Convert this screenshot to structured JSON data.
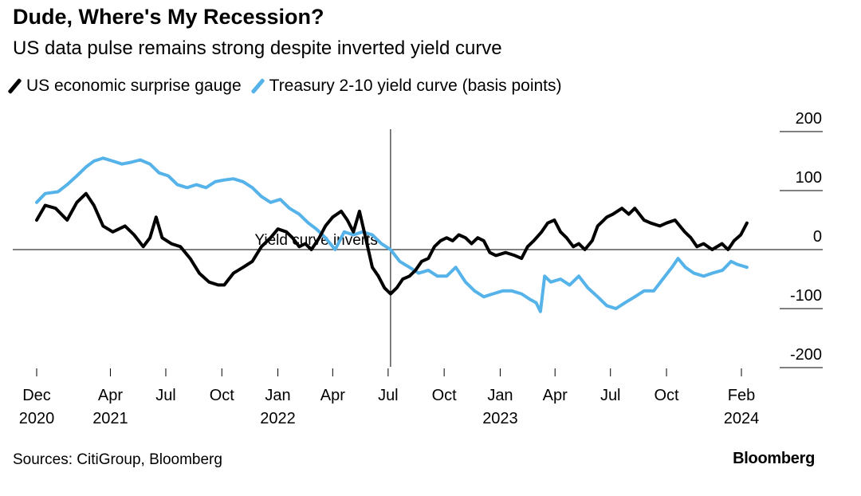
{
  "header": {
    "title": "Dude, Where's My Recession?",
    "subtitle": "US data pulse remains strong despite inverted yield curve"
  },
  "footer": {
    "source": "Sources: CitiGroup, Bloomberg",
    "brand": "Bloomberg"
  },
  "chart_data": {
    "type": "line",
    "x_axis": {
      "range": [
        "2020-12-01",
        "2024-02-15"
      ],
      "ticks": [
        {
          "date": "2020-12-01",
          "label": "Dec",
          "year": "2020"
        },
        {
          "date": "2021-04-01",
          "label": "Apr",
          "year": "2021"
        },
        {
          "date": "2021-07-01",
          "label": "Jul",
          "year": ""
        },
        {
          "date": "2021-10-01",
          "label": "Oct",
          "year": ""
        },
        {
          "date": "2022-01-01",
          "label": "Jan",
          "year": "2022"
        },
        {
          "date": "2022-04-01",
          "label": "Apr",
          "year": ""
        },
        {
          "date": "2022-07-01",
          "label": "Jul",
          "year": ""
        },
        {
          "date": "2022-10-01",
          "label": "Oct",
          "year": ""
        },
        {
          "date": "2023-01-01",
          "label": "Jan",
          "year": "2023"
        },
        {
          "date": "2023-04-01",
          "label": "Apr",
          "year": ""
        },
        {
          "date": "2023-07-01",
          "label": "Jul",
          "year": ""
        },
        {
          "date": "2023-10-01",
          "label": "Oct",
          "year": ""
        },
        {
          "date": "2024-02-01",
          "label": "Feb",
          "year": "2024"
        }
      ]
    },
    "y_axis": {
      "range": [
        -200,
        200
      ],
      "ticks": [
        200,
        100,
        0,
        -100,
        -200
      ],
      "position": "right"
    },
    "series": [
      {
        "name": "US economic surprise gauge",
        "color": "#000000",
        "points": [
          [
            "2020-12-01",
            50
          ],
          [
            "2020-12-15",
            75
          ],
          [
            "2021-01-01",
            70
          ],
          [
            "2021-01-20",
            50
          ],
          [
            "2021-02-05",
            80
          ],
          [
            "2021-02-20",
            95
          ],
          [
            "2021-03-05",
            75
          ],
          [
            "2021-03-20",
            40
          ],
          [
            "2021-04-05",
            30
          ],
          [
            "2021-04-25",
            40
          ],
          [
            "2021-05-10",
            25
          ],
          [
            "2021-05-25",
            5
          ],
          [
            "2021-06-05",
            20
          ],
          [
            "2021-06-15",
            55
          ],
          [
            "2021-06-25",
            20
          ],
          [
            "2021-07-10",
            10
          ],
          [
            "2021-07-25",
            5
          ],
          [
            "2021-08-10",
            -15
          ],
          [
            "2021-08-25",
            -40
          ],
          [
            "2021-09-10",
            -55
          ],
          [
            "2021-09-25",
            -60
          ],
          [
            "2021-10-05",
            -60
          ],
          [
            "2021-10-20",
            -40
          ],
          [
            "2021-11-05",
            -30
          ],
          [
            "2021-11-20",
            -20
          ],
          [
            "2021-12-05",
            5
          ],
          [
            "2021-12-20",
            20
          ],
          [
            "2022-01-01",
            35
          ],
          [
            "2022-01-15",
            30
          ],
          [
            "2022-01-25",
            20
          ],
          [
            "2022-02-05",
            5
          ],
          [
            "2022-02-15",
            10
          ],
          [
            "2022-02-25",
            0
          ],
          [
            "2022-03-10",
            20
          ],
          [
            "2022-03-20",
            40
          ],
          [
            "2022-04-01",
            55
          ],
          [
            "2022-04-15",
            65
          ],
          [
            "2022-04-25",
            50
          ],
          [
            "2022-05-05",
            30
          ],
          [
            "2022-05-15",
            65
          ],
          [
            "2022-05-25",
            20
          ],
          [
            "2022-06-05",
            -30
          ],
          [
            "2022-06-15",
            -45
          ],
          [
            "2022-06-25",
            -65
          ],
          [
            "2022-07-05",
            -75
          ],
          [
            "2022-07-15",
            -65
          ],
          [
            "2022-07-25",
            -50
          ],
          [
            "2022-08-05",
            -45
          ],
          [
            "2022-08-15",
            -35
          ],
          [
            "2022-08-25",
            -20
          ],
          [
            "2022-09-05",
            -15
          ],
          [
            "2022-09-15",
            5
          ],
          [
            "2022-09-25",
            15
          ],
          [
            "2022-10-05",
            20
          ],
          [
            "2022-10-15",
            15
          ],
          [
            "2022-10-25",
            25
          ],
          [
            "2022-11-05",
            20
          ],
          [
            "2022-11-15",
            10
          ],
          [
            "2022-11-25",
            20
          ],
          [
            "2022-12-05",
            15
          ],
          [
            "2022-12-15",
            -5
          ],
          [
            "2022-12-25",
            -10
          ],
          [
            "2023-01-10",
            -5
          ],
          [
            "2023-01-25",
            -10
          ],
          [
            "2023-02-05",
            -15
          ],
          [
            "2023-02-15",
            5
          ],
          [
            "2023-02-25",
            15
          ],
          [
            "2023-03-10",
            30
          ],
          [
            "2023-03-20",
            45
          ],
          [
            "2023-03-31",
            50
          ],
          [
            "2023-04-10",
            30
          ],
          [
            "2023-04-20",
            20
          ],
          [
            "2023-05-01",
            5
          ],
          [
            "2023-05-10",
            10
          ],
          [
            "2023-05-20",
            0
          ],
          [
            "2023-06-01",
            15
          ],
          [
            "2023-06-10",
            40
          ],
          [
            "2023-06-25",
            55
          ],
          [
            "2023-07-05",
            60
          ],
          [
            "2023-07-20",
            70
          ],
          [
            "2023-07-31",
            60
          ],
          [
            "2023-08-10",
            70
          ],
          [
            "2023-08-25",
            50
          ],
          [
            "2023-09-05",
            45
          ],
          [
            "2023-09-20",
            40
          ],
          [
            "2023-10-01",
            45
          ],
          [
            "2023-10-15",
            50
          ],
          [
            "2023-10-31",
            30
          ],
          [
            "2023-11-10",
            20
          ],
          [
            "2023-11-20",
            5
          ],
          [
            "2023-12-01",
            10
          ],
          [
            "2023-12-15",
            0
          ],
          [
            "2023-12-31",
            10
          ],
          [
            "2024-01-10",
            0
          ],
          [
            "2024-01-20",
            15
          ],
          [
            "2024-01-31",
            25
          ],
          [
            "2024-02-10",
            45
          ]
        ]
      },
      {
        "name": "Treasury 2-10 yield curve (basis points)",
        "color": "#55b3ea",
        "points": [
          [
            "2020-12-01",
            80
          ],
          [
            "2020-12-15",
            95
          ],
          [
            "2021-01-05",
            98
          ],
          [
            "2021-01-20",
            110
          ],
          [
            "2021-02-05",
            125
          ],
          [
            "2021-02-20",
            140
          ],
          [
            "2021-03-05",
            150
          ],
          [
            "2021-03-20",
            155
          ],
          [
            "2021-04-05",
            150
          ],
          [
            "2021-04-20",
            145
          ],
          [
            "2021-05-05",
            148
          ],
          [
            "2021-05-20",
            152
          ],
          [
            "2021-06-05",
            145
          ],
          [
            "2021-06-20",
            130
          ],
          [
            "2021-07-05",
            125
          ],
          [
            "2021-07-20",
            110
          ],
          [
            "2021-08-05",
            105
          ],
          [
            "2021-08-20",
            110
          ],
          [
            "2021-09-05",
            105
          ],
          [
            "2021-09-20",
            115
          ],
          [
            "2021-10-05",
            118
          ],
          [
            "2021-10-20",
            120
          ],
          [
            "2021-11-05",
            115
          ],
          [
            "2021-11-20",
            105
          ],
          [
            "2021-12-05",
            90
          ],
          [
            "2021-12-20",
            80
          ],
          [
            "2022-01-05",
            85
          ],
          [
            "2022-01-20",
            70
          ],
          [
            "2022-02-05",
            60
          ],
          [
            "2022-02-20",
            45
          ],
          [
            "2022-03-05",
            35
          ],
          [
            "2022-03-20",
            20
          ],
          [
            "2022-04-05",
            0
          ],
          [
            "2022-04-20",
            30
          ],
          [
            "2022-05-05",
            25
          ],
          [
            "2022-05-20",
            30
          ],
          [
            "2022-06-05",
            25
          ],
          [
            "2022-06-20",
            10
          ],
          [
            "2022-07-05",
            0
          ],
          [
            "2022-07-20",
            -20
          ],
          [
            "2022-08-05",
            -30
          ],
          [
            "2022-08-20",
            -40
          ],
          [
            "2022-09-05",
            -35
          ],
          [
            "2022-09-20",
            -45
          ],
          [
            "2022-10-05",
            -45
          ],
          [
            "2022-10-20",
            -30
          ],
          [
            "2022-11-05",
            -55
          ],
          [
            "2022-11-20",
            -70
          ],
          [
            "2022-12-05",
            -80
          ],
          [
            "2022-12-20",
            -75
          ],
          [
            "2023-01-05",
            -70
          ],
          [
            "2023-01-20",
            -70
          ],
          [
            "2023-02-05",
            -75
          ],
          [
            "2023-02-20",
            -85
          ],
          [
            "2023-03-01",
            -90
          ],
          [
            "2023-03-08",
            -105
          ],
          [
            "2023-03-15",
            -45
          ],
          [
            "2023-03-25",
            -55
          ],
          [
            "2023-04-10",
            -50
          ],
          [
            "2023-04-25",
            -60
          ],
          [
            "2023-05-10",
            -45
          ],
          [
            "2023-05-25",
            -65
          ],
          [
            "2023-06-10",
            -80
          ],
          [
            "2023-06-25",
            -95
          ],
          [
            "2023-07-10",
            -100
          ],
          [
            "2023-07-25",
            -90
          ],
          [
            "2023-08-10",
            -80
          ],
          [
            "2023-08-25",
            -70
          ],
          [
            "2023-09-10",
            -70
          ],
          [
            "2023-09-25",
            -50
          ],
          [
            "2023-10-10",
            -30
          ],
          [
            "2023-10-20",
            -15
          ],
          [
            "2023-11-01",
            -30
          ],
          [
            "2023-11-15",
            -40
          ],
          [
            "2023-12-01",
            -45
          ],
          [
            "2023-12-15",
            -40
          ],
          [
            "2024-01-01",
            -35
          ],
          [
            "2024-01-15",
            -20
          ],
          [
            "2024-01-25",
            -25
          ],
          [
            "2024-02-10",
            -30
          ]
        ]
      }
    ],
    "annotations": [
      {
        "date": "2022-07-05",
        "text": "Yield curve inverts"
      }
    ]
  }
}
